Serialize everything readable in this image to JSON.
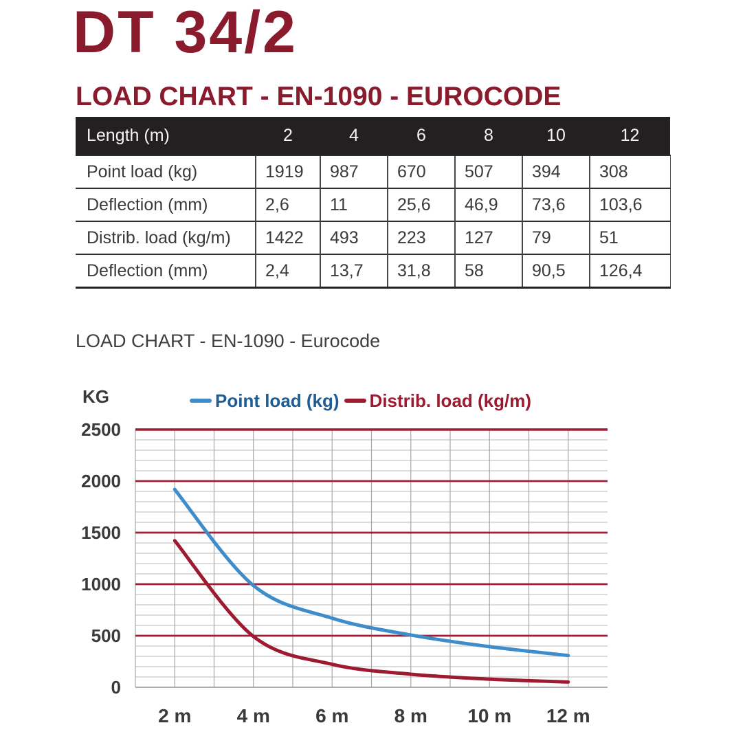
{
  "page": {
    "title": "DT 34/2",
    "heading": "LOAD CHART - EN-1090 - EUROCODE",
    "subtitle": "LOAD CHART - EN-1090 - Eurocode"
  },
  "colors": {
    "brand_maroon": "#8a1b2c",
    "table_header_bg": "#242021",
    "text_dark": "#3a3a3a"
  },
  "table": {
    "header": {
      "label": "Length (m)",
      "columns": [
        "2",
        "4",
        "6",
        "8",
        "10",
        "12"
      ]
    },
    "rows": [
      {
        "label": "Point load (kg)",
        "values": [
          "1919",
          "987",
          "670",
          "507",
          "394",
          "308"
        ]
      },
      {
        "label": "Deflection (mm)",
        "values": [
          "2,6",
          "11",
          "25,6",
          "46,9",
          "73,6",
          "103,6"
        ]
      },
      {
        "label": "Distrib. load (kg/m)",
        "values": [
          "1422",
          "493",
          "223",
          "127",
          "79",
          "51"
        ]
      },
      {
        "label": "Deflection (mm)",
        "values": [
          "2,4",
          "13,7",
          "31,8",
          "58",
          "90,5",
          "126,4"
        ]
      }
    ]
  },
  "chart_data": {
    "type": "line",
    "title": "LOAD CHART - EN-1090 - Eurocode",
    "ylabel": "KG",
    "x": [
      2,
      4,
      6,
      8,
      10,
      12
    ],
    "x_tick_labels": [
      "2 m",
      "4 m",
      "6 m",
      "8 m",
      "10 m",
      "12 m"
    ],
    "xlim": [
      1,
      13
    ],
    "ylim": [
      0,
      2500
    ],
    "y_major_ticks": [
      0,
      500,
      1000,
      1500,
      2000,
      2500
    ],
    "y_minor_step": 100,
    "grid": {
      "major_color": "#a01e35",
      "minor_color": "#c8c8c8",
      "vertical_color": "#a6a6a6",
      "zero_color": "#8f8f8f"
    },
    "legend_position": "top",
    "series": [
      {
        "name": "Point load (kg)",
        "color": "#3e8cc9",
        "text_color": "#1f5c94",
        "values": [
          1919,
          987,
          670,
          507,
          394,
          308
        ]
      },
      {
        "name": "Distrib. load (kg/m)",
        "color": "#9c1b31",
        "text_color": "#9c1b31",
        "values": [
          1422,
          493,
          223,
          127,
          79,
          51
        ]
      }
    ]
  }
}
